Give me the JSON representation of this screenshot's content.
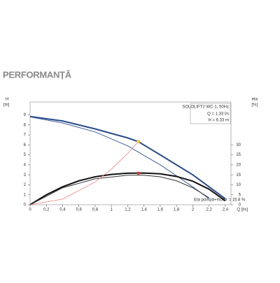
{
  "title": "PERFORMANȚĂ",
  "chart_data": {
    "type": "line",
    "y_label": "H",
    "y_unit": "[m]",
    "y2_label": "eta",
    "y2_unit": "[%]",
    "x_label": "Q [l/s]",
    "info": [
      "SOLOLIFT2 WC-1, 50Hz",
      "Q = 1.33 l/s",
      "H = 6.33 m"
    ],
    "annotation": "Eta pompă+motor = 15.8 %",
    "xlim": [
      0,
      2.47
    ],
    "ylim": [
      0,
      10.3
    ],
    "y2lim": [
      0,
      51.5
    ],
    "xticks": [
      0,
      {
        "value": 0.2,
        "label": "0,2"
      },
      {
        "value": 0.4,
        "label": "0,4"
      },
      {
        "value": 0.6,
        "label": "0,6"
      },
      {
        "value": 0.8,
        "label": "0,8"
      },
      1,
      {
        "value": 1.2,
        "label": "1,2"
      },
      {
        "value": 1.4,
        "label": "1,4"
      },
      {
        "value": 1.6,
        "label": "1,6"
      },
      {
        "value": 1.8,
        "label": "1,8"
      },
      2,
      {
        "value": 2.2,
        "label": "2,2"
      },
      {
        "value": 2.4,
        "label": "2,4"
      }
    ],
    "yticks": [
      0,
      1,
      2,
      3,
      4,
      5,
      6,
      7,
      8,
      9
    ],
    "y2ticks": [
      0,
      5,
      10,
      15,
      20,
      25,
      30
    ],
    "series": [
      {
        "color": "#2a4a8a",
        "width": 2,
        "x": [
          0,
          0.4,
          0.8,
          1.2,
          1.33,
          1.6,
          2.0,
          2.4
        ],
        "values": [
          8.85,
          8.4,
          7.6,
          6.7,
          6.33,
          5.0,
          3.0,
          0.6
        ]
      },
      {
        "color": "#3c5f9e",
        "width": 1,
        "x": [
          0,
          0.4,
          0.8,
          1.2,
          1.6,
          2.0,
          2.2
        ],
        "values": [
          8.8,
          8.2,
          7.3,
          5.9,
          4.0,
          1.8,
          0.6
        ]
      },
      {
        "color": "#111111",
        "width": 2,
        "axis": "y2",
        "x": [
          0,
          0.2,
          0.4,
          0.6,
          0.8,
          1.0,
          1.2,
          1.4,
          1.6,
          1.8,
          2.0,
          2.2,
          2.4
        ],
        "values": [
          0,
          5,
          9,
          12,
          14,
          15.2,
          15.8,
          15.9,
          15.5,
          14.2,
          11.8,
          7.8,
          2
        ]
      },
      {
        "color": "#333333",
        "width": 1,
        "axis": "y2",
        "x": [
          0,
          0.4,
          0.8,
          1.2,
          1.4,
          1.6,
          1.8,
          2.0,
          2.2
        ],
        "values": [
          0,
          8.5,
          13,
          14.8,
          14.8,
          14,
          12,
          8.5,
          3.5
        ]
      },
      {
        "color": "#f08080",
        "width": 0.8,
        "x": [
          0,
          0.4,
          0.8,
          1.0,
          1.2,
          1.33
        ],
        "values": [
          0,
          0.57,
          2.29,
          3.58,
          5.15,
          6.33
        ]
      },
      {
        "color": "#f5c518",
        "marker": true,
        "x": [
          1.33
        ],
        "values": [
          6.33
        ]
      },
      {
        "color": "#e03030",
        "marker": true,
        "axis": "y2",
        "x": [
          1.33
        ],
        "values": [
          15.8
        ]
      }
    ]
  }
}
